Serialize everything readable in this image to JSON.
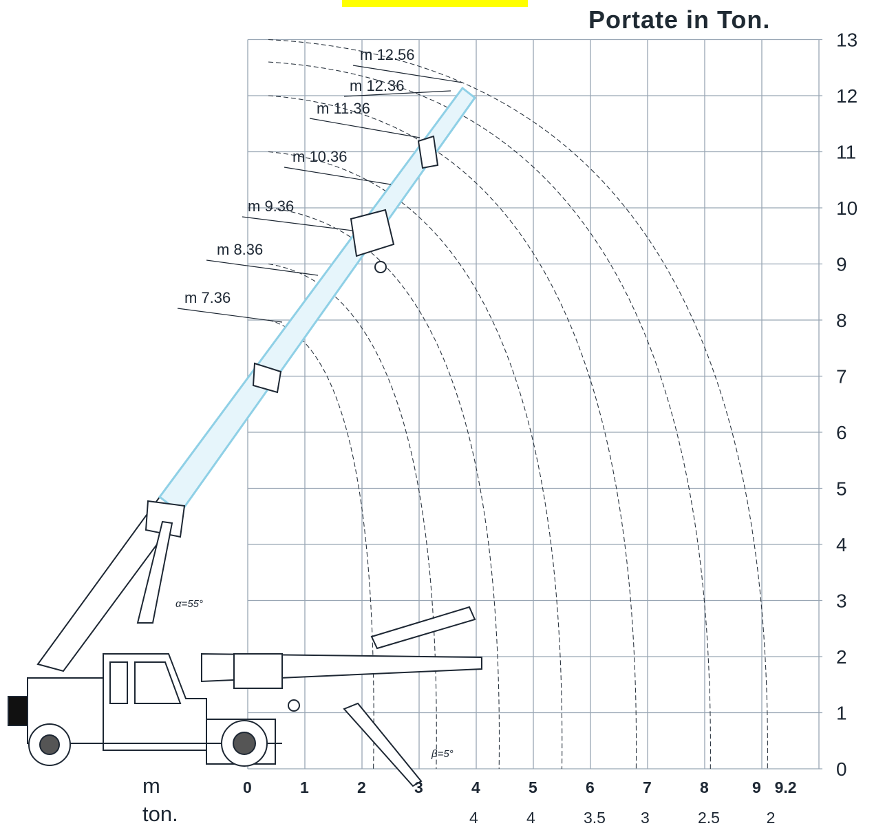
{
  "title": "Portate in Ton.",
  "axis": {
    "x_unit": "m",
    "load_unit": "ton.",
    "y_ticks": [
      "0",
      "1",
      "2",
      "3",
      "4",
      "5",
      "6",
      "7",
      "8",
      "9",
      "10",
      "11",
      "12",
      "13"
    ],
    "x_ticks": [
      {
        "label": "0",
        "value": 0
      },
      {
        "label": "1",
        "value": 1
      },
      {
        "label": "2",
        "value": 2
      },
      {
        "label": "3",
        "value": 3
      },
      {
        "label": "4",
        "value": 4
      },
      {
        "label": "5",
        "value": 5
      },
      {
        "label": "6",
        "value": 6
      },
      {
        "label": "7",
        "value": 7
      },
      {
        "label": "8",
        "value": 8
      },
      {
        "label": "9",
        "value": 9
      },
      {
        "label": "9.2",
        "value": 9.2
      }
    ],
    "loads": [
      {
        "label": "4",
        "at": 4
      },
      {
        "label": "4",
        "at": 5
      },
      {
        "label": "3.5",
        "at": 6
      },
      {
        "label": "3",
        "at": 7
      },
      {
        "label": "2.5",
        "at": 8
      },
      {
        "label": "2",
        "at": 9.2
      }
    ]
  },
  "boom_lengths": [
    "m 7.36",
    "m 8.36",
    "m 9.36",
    "m 10.36",
    "m 11.36",
    "m 12.36",
    "m 12.56"
  ],
  "angles": {
    "alpha": "α=55°",
    "beta": "β=5°"
  },
  "colors": {
    "grid": "#99a6b4",
    "ink": "#1d2733",
    "boom": "#8fd0e6",
    "highlight": "#ffff00"
  }
}
